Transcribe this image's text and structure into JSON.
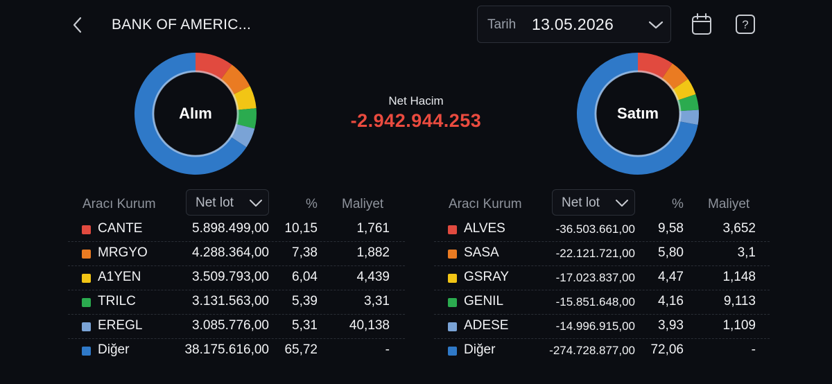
{
  "header": {
    "title": "BANK OF AMERIC...",
    "date_label": "Tarih",
    "date_value": "13.05.2026"
  },
  "summary": {
    "net_label": "Net Hacim",
    "net_value": "-2.942.944.253",
    "net_color": "#ea4b3f"
  },
  "colors": {
    "red": "#e14a3f",
    "orange": "#ea7b22",
    "yellow": "#f2c515",
    "green": "#2bab4f",
    "lightblue": "#7aa3d6",
    "blue": "#2f79c8",
    "background": "#0b0d12"
  },
  "buy": {
    "chart_label": "Alım",
    "col_broker": "Aracı Kurum",
    "col_sort": "Net lot",
    "col_pct": "%",
    "col_cost": "Maliyet",
    "rows": [
      {
        "name": "CANTE",
        "lot": "5.898.499,00",
        "pct": "10,15",
        "cost": "1,761",
        "color": "#e14a3f"
      },
      {
        "name": "MRGYO",
        "lot": "4.288.364,00",
        "pct": "7,38",
        "cost": "1,882",
        "color": "#ea7b22"
      },
      {
        "name": "A1YEN",
        "lot": "3.509.793,00",
        "pct": "6,04",
        "cost": "4,439",
        "color": "#f2c515"
      },
      {
        "name": "TRILC",
        "lot": "3.131.563,00",
        "pct": "5,39",
        "cost": "3,31",
        "color": "#2bab4f"
      },
      {
        "name": "EREGL",
        "lot": "3.085.776,00",
        "pct": "5,31",
        "cost": "40,138",
        "color": "#7aa3d6"
      },
      {
        "name": "Diğer",
        "lot": "38.175.616,00",
        "pct": "65,72",
        "cost": "-",
        "color": "#2f79c8"
      }
    ]
  },
  "sell": {
    "chart_label": "Satım",
    "col_broker": "Aracı Kurum",
    "col_sort": "Net lot",
    "col_pct": "%",
    "col_cost": "Maliyet",
    "rows": [
      {
        "name": "ALVES",
        "lot": "-36.503.661,00",
        "pct": "9,58",
        "cost": "3,652",
        "color": "#e14a3f"
      },
      {
        "name": "SASA",
        "lot": "-22.121.721,00",
        "pct": "5,80",
        "cost": "3,1",
        "color": "#ea7b22"
      },
      {
        "name": "GSRAY",
        "lot": "-17.023.837,00",
        "pct": "4,47",
        "cost": "1,148",
        "color": "#f2c515"
      },
      {
        "name": "GENIL",
        "lot": "-15.851.648,00",
        "pct": "4,16",
        "cost": "9,113",
        "color": "#2bab4f"
      },
      {
        "name": "ADESE",
        "lot": "-14.996.915,00",
        "pct": "3,93",
        "cost": "1,109",
        "color": "#7aa3d6"
      },
      {
        "name": "Diğer",
        "lot": "-274.728.877,00",
        "pct": "72,06",
        "cost": "-",
        "color": "#2f79c8"
      }
    ]
  }
}
